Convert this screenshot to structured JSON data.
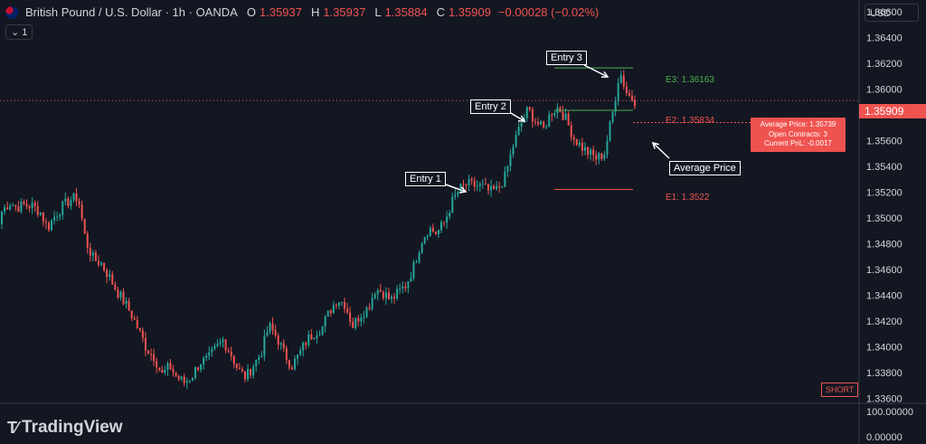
{
  "header": {
    "symbol": "British Pound / U.S. Dollar · 1h · OANDA",
    "open_label": "O",
    "open_value": "1.35937",
    "high_label": "H",
    "high_value": "1.35937",
    "low_label": "L",
    "low_value": "1.35884",
    "close_label": "C",
    "close_value": "1.35909",
    "change": "−0.00028 (−0.02%)",
    "collapse_label": "1"
  },
  "currency": "USD",
  "brand": "TradingView",
  "short_badge": "SHORT",
  "last_price_label": "1.35909",
  "annotations": {
    "entry1": "Entry 1",
    "entry2": "Entry 2",
    "entry3": "Entry 3",
    "average_price": "Average Price"
  },
  "levels": {
    "e1": {
      "label": "E1: 1.3522",
      "value": 1.3522
    },
    "e2": {
      "label": "E2: 1.35834",
      "value": 1.35834
    },
    "e3": {
      "label": "E3: 1.36163",
      "value": 1.36163
    },
    "avg": 1.35739
  },
  "position": {
    "line1": "Average Price: 1.35739",
    "line2": "Open Contracts: 3",
    "line3": "Current PnL: -0.0017"
  },
  "colors": {
    "up": "#26a69a",
    "down": "#ef5350",
    "bg": "#131722",
    "e3": "#4caf50"
  },
  "chart_data": {
    "type": "candlestick",
    "y_ticks": [
      "1.36600",
      "1.36400",
      "1.36200",
      "1.36000",
      "1.35800",
      "1.35600",
      "1.35400",
      "1.35200",
      "1.35000",
      "1.34800",
      "1.34600",
      "1.34400",
      "1.34200",
      "1.34000",
      "1.33800",
      "1.33600"
    ],
    "ylim": [
      1.3356,
      1.3669
    ],
    "volume_ticks": [
      "100.00000",
      "0.00000"
    ],
    "close_path": [
      1.3505,
      1.3512,
      1.3508,
      1.351,
      1.3509,
      1.3505,
      1.3492,
      1.3502,
      1.3509,
      1.3514,
      1.3516,
      1.3482,
      1.3468,
      1.3465,
      1.3455,
      1.3444,
      1.3435,
      1.3425,
      1.3412,
      1.3398,
      1.3392,
      1.3378,
      1.3385,
      1.3376,
      1.3372,
      1.3378,
      1.3388,
      1.339,
      1.3398,
      1.3405,
      1.3395,
      1.3382,
      1.3376,
      1.3386,
      1.3395,
      1.3416,
      1.3408,
      1.3395,
      1.3385,
      1.3394,
      1.3405,
      1.3411,
      1.3415,
      1.3428,
      1.3437,
      1.3433,
      1.3416,
      1.3425,
      1.343,
      1.3445,
      1.3442,
      1.3436,
      1.3442,
      1.3448,
      1.3462,
      1.3482,
      1.3492,
      1.3488,
      1.3496,
      1.3512,
      1.3522,
      1.3526,
      1.3525,
      1.3524,
      1.352,
      1.3522,
      1.3532,
      1.3555,
      1.3572,
      1.3584,
      1.3575,
      1.3568,
      1.3582,
      1.3586,
      1.3576,
      1.3562,
      1.3555,
      1.355,
      1.3546,
      1.355,
      1.3578,
      1.3614,
      1.3596,
      1.3591
    ],
    "start_open": 1.3495
  }
}
